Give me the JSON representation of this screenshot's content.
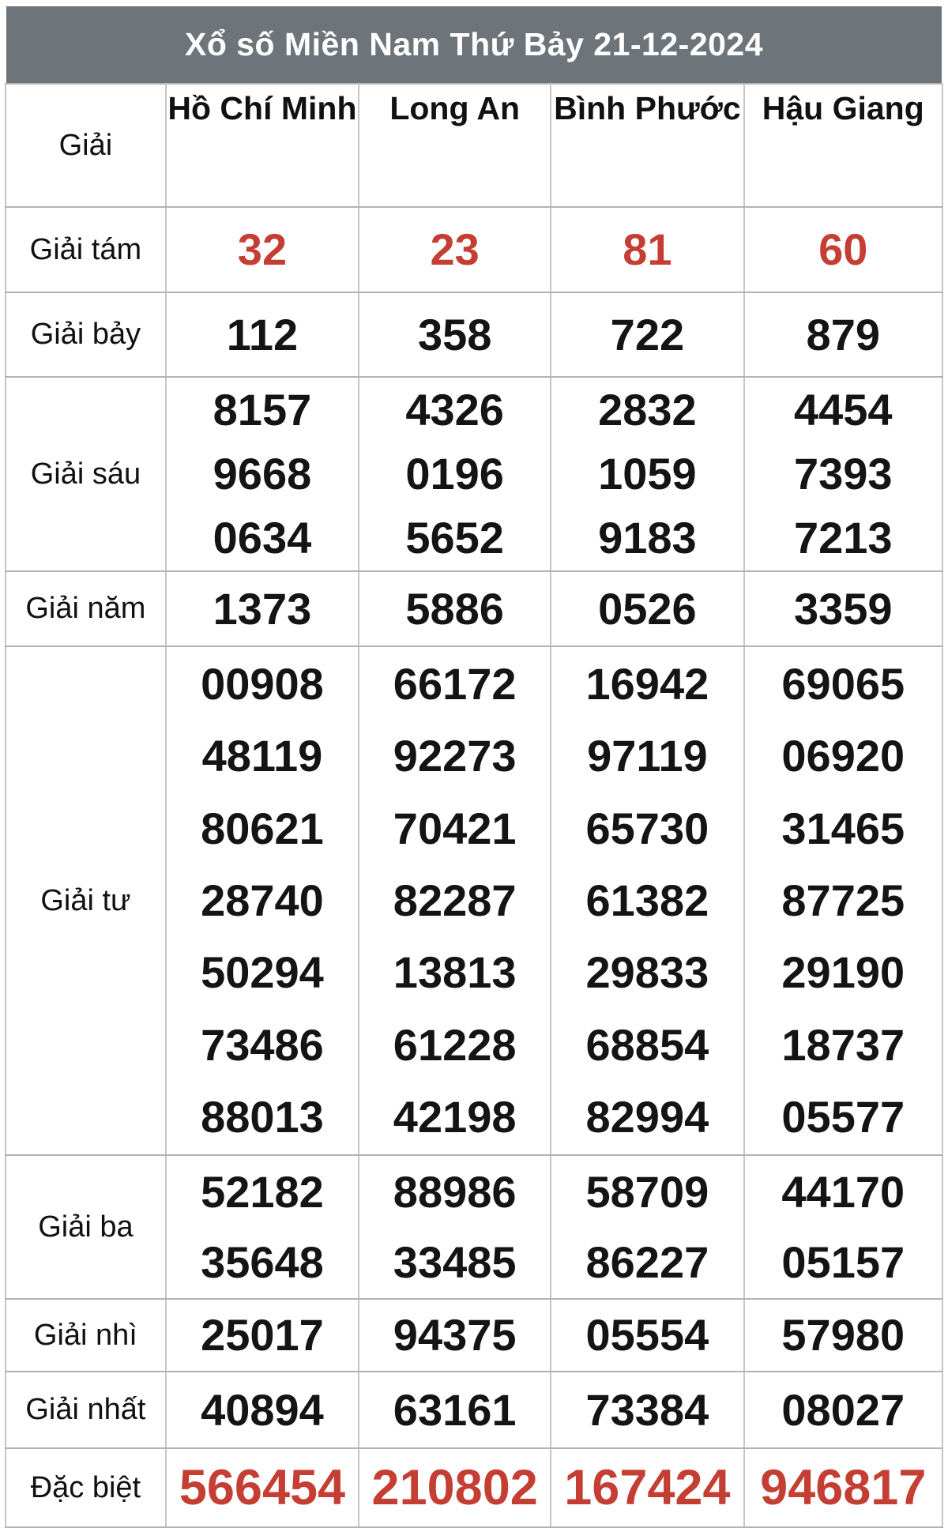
{
  "title": "Xổ số Miền Nam Thứ Bảy 21-12-2024",
  "colors": {
    "header_bg": "#6e757a",
    "accent_red": "#c53e33",
    "border_gray": "#c6c6c6",
    "text_black": "#141414"
  },
  "table": {
    "label_header": "Giải",
    "provinces": [
      "Hồ Chí Minh",
      "Long An",
      "Bình Phước",
      "Hậu Giang"
    ],
    "rows": [
      {
        "label": "Giải tám",
        "color": "red",
        "values": [
          [
            "32"
          ],
          [
            "23"
          ],
          [
            "81"
          ],
          [
            "60"
          ]
        ]
      },
      {
        "label": "Giải bảy",
        "color": "black",
        "values": [
          [
            "112"
          ],
          [
            "358"
          ],
          [
            "722"
          ],
          [
            "879"
          ]
        ]
      },
      {
        "label": "Giải sáu",
        "color": "black",
        "values": [
          [
            "8157",
            "9668",
            "0634"
          ],
          [
            "4326",
            "0196",
            "5652"
          ],
          [
            "2832",
            "1059",
            "9183"
          ],
          [
            "4454",
            "7393",
            "7213"
          ]
        ]
      },
      {
        "label": "Giải năm",
        "color": "black",
        "values": [
          [
            "1373"
          ],
          [
            "5886"
          ],
          [
            "0526"
          ],
          [
            "3359"
          ]
        ]
      },
      {
        "label": "Giải tư",
        "color": "black",
        "values": [
          [
            "00908",
            "48119",
            "80621",
            "28740",
            "50294",
            "73486",
            "88013"
          ],
          [
            "66172",
            "92273",
            "70421",
            "82287",
            "13813",
            "61228",
            "42198"
          ],
          [
            "16942",
            "97119",
            "65730",
            "61382",
            "29833",
            "68854",
            "82994"
          ],
          [
            "69065",
            "06920",
            "31465",
            "87725",
            "29190",
            "18737",
            "05577"
          ]
        ]
      },
      {
        "label": "Giải ba",
        "color": "black",
        "values": [
          [
            "52182",
            "35648"
          ],
          [
            "88986",
            "33485"
          ],
          [
            "58709",
            "86227"
          ],
          [
            "44170",
            "05157"
          ]
        ]
      },
      {
        "label": "Giải nhì",
        "color": "black",
        "values": [
          [
            "25017"
          ],
          [
            "94375"
          ],
          [
            "05554"
          ],
          [
            "57980"
          ]
        ]
      },
      {
        "label": "Giải nhất",
        "color": "black",
        "values": [
          [
            "40894"
          ],
          [
            "63161"
          ],
          [
            "73384"
          ],
          [
            "08027"
          ]
        ]
      },
      {
        "label": "Đặc biệt",
        "color": "red",
        "values": [
          [
            "566454"
          ],
          [
            "210802"
          ],
          [
            "167424"
          ],
          [
            "946817"
          ]
        ]
      }
    ]
  }
}
